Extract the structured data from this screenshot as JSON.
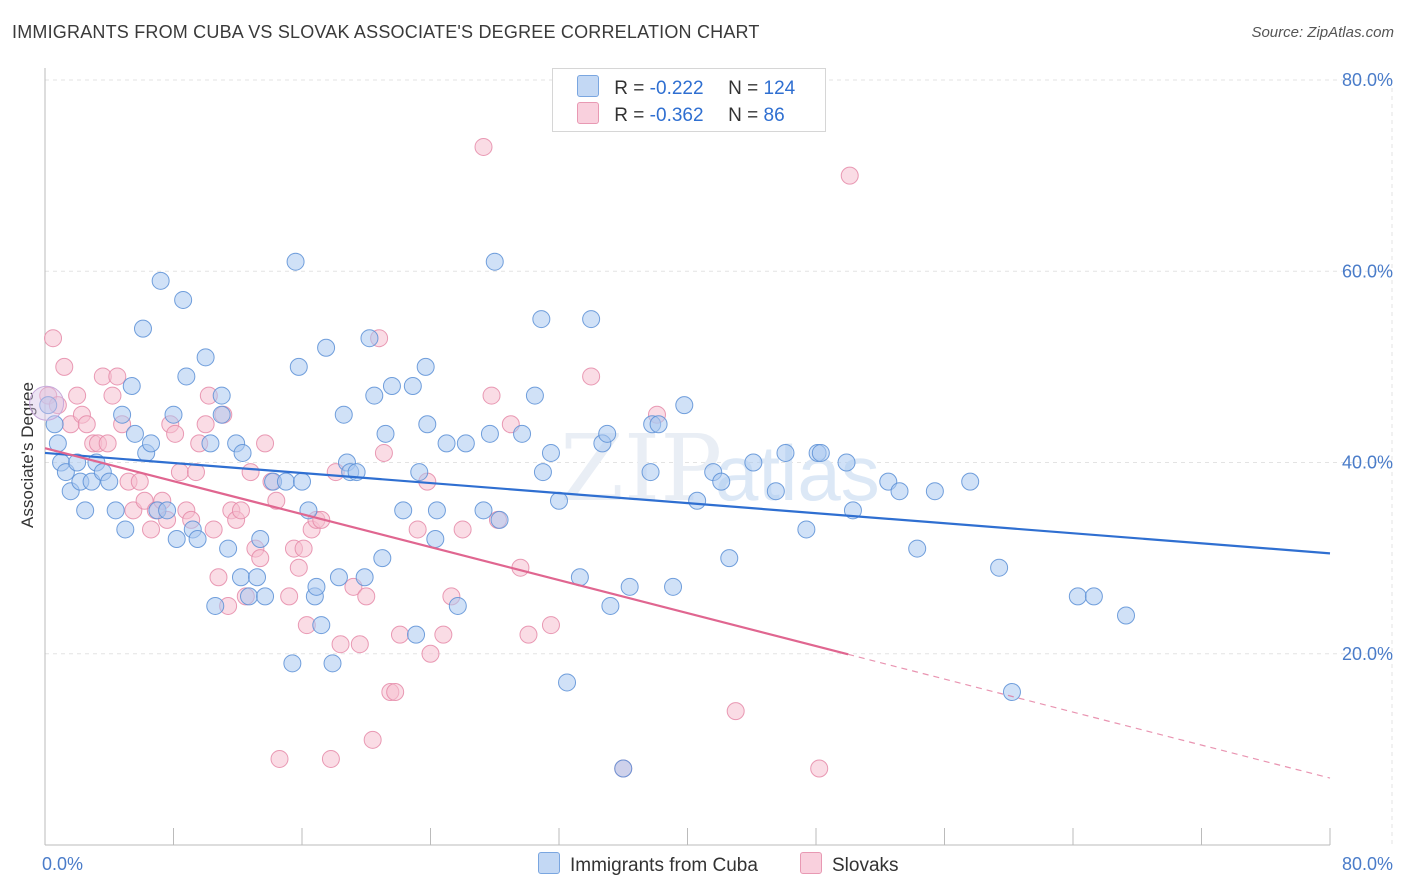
{
  "header": {
    "title": "IMMIGRANTS FROM CUBA VS SLOVAK ASSOCIATE'S DEGREE CORRELATION CHART",
    "source": "Source: ZipAtlas.com"
  },
  "legend": {
    "rows": [
      {
        "r_label": "R =",
        "r_value": "-0.222",
        "n_label": "N =",
        "n_value": "124"
      },
      {
        "r_label": "R =",
        "r_value": "-0.362",
        "n_label": "N =",
        "n_value": "86"
      }
    ]
  },
  "colors": {
    "blue_fill": "#a9c8f0",
    "blue_stroke": "#5a8fd6",
    "blue_line": "#2f6fd1",
    "pink_fill": "#f6bfd0",
    "pink_stroke": "#e58aa8",
    "pink_line": "#e06690",
    "grid": "#e3e3e3",
    "tick_text": "#4a7cc9"
  },
  "chart_data": {
    "type": "scatter",
    "title": "IMMIGRANTS FROM CUBA VS SLOVAK ASSOCIATE'S DEGREE CORRELATION CHART",
    "xlabel": "",
    "ylabel": "Associate's Degree",
    "xlim": [
      0,
      80
    ],
    "ylim": [
      0,
      80
    ],
    "x_tick_labels": [
      "0.0%",
      "80.0%"
    ],
    "y_ticks": [
      20,
      40,
      60,
      80
    ],
    "y_tick_labels": [
      "20.0%",
      "40.0%",
      "60.0%",
      "80.0%"
    ],
    "grid": true,
    "legend_position": "bottom",
    "watermark": "ZIPatlas",
    "series": [
      {
        "name": "Immigrants from Cuba",
        "color": "#a9c8f0",
        "trend": {
          "x0": 0,
          "y0": 41.0,
          "x1": 80,
          "y1": 30.5,
          "dashed_from": null
        },
        "points": [
          [
            0.2,
            46
          ],
          [
            0.6,
            44
          ],
          [
            0.8,
            42
          ],
          [
            1,
            40
          ],
          [
            1.3,
            39
          ],
          [
            1.6,
            37
          ],
          [
            2,
            40
          ],
          [
            2.2,
            38
          ],
          [
            2.5,
            35
          ],
          [
            2.9,
            38
          ],
          [
            3.2,
            40
          ],
          [
            3.6,
            39
          ],
          [
            4,
            38
          ],
          [
            4.4,
            35
          ],
          [
            4.8,
            45
          ],
          [
            5,
            33
          ],
          [
            5.4,
            48
          ],
          [
            5.6,
            43
          ],
          [
            6.1,
            54
          ],
          [
            6.3,
            41
          ],
          [
            6.6,
            42
          ],
          [
            7,
            35
          ],
          [
            7.2,
            59
          ],
          [
            7.6,
            35
          ],
          [
            8,
            45
          ],
          [
            8.2,
            32
          ],
          [
            8.6,
            57
          ],
          [
            8.8,
            49
          ],
          [
            9.2,
            33
          ],
          [
            9.5,
            32
          ],
          [
            10,
            51
          ],
          [
            10.3,
            42
          ],
          [
            10.6,
            25
          ],
          [
            11,
            47
          ],
          [
            11,
            45
          ],
          [
            11.4,
            31
          ],
          [
            11.9,
            42
          ],
          [
            12.2,
            28
          ],
          [
            12.3,
            41
          ],
          [
            12.7,
            26
          ],
          [
            13.2,
            28
          ],
          [
            13.4,
            32
          ],
          [
            13.7,
            26
          ],
          [
            14.2,
            38
          ],
          [
            15,
            38
          ],
          [
            15.4,
            19
          ],
          [
            15.6,
            61
          ],
          [
            15.8,
            50
          ],
          [
            16,
            38
          ],
          [
            16.4,
            35
          ],
          [
            16.8,
            26
          ],
          [
            16.9,
            27
          ],
          [
            17.2,
            23
          ],
          [
            17.5,
            52
          ],
          [
            17.9,
            19
          ],
          [
            18.3,
            28
          ],
          [
            18.6,
            45
          ],
          [
            18.8,
            40
          ],
          [
            19,
            39
          ],
          [
            19.4,
            39
          ],
          [
            19.9,
            28
          ],
          [
            20.2,
            53
          ],
          [
            20.5,
            47
          ],
          [
            21,
            30
          ],
          [
            21.2,
            43
          ],
          [
            21.6,
            48
          ],
          [
            22.3,
            35
          ],
          [
            22.9,
            48
          ],
          [
            23.1,
            22
          ],
          [
            23.3,
            39
          ],
          [
            23.7,
            50
          ],
          [
            23.8,
            44
          ],
          [
            24.3,
            32
          ],
          [
            24.4,
            35
          ],
          [
            25,
            42
          ],
          [
            25.7,
            25
          ],
          [
            26.2,
            42
          ],
          [
            27.3,
            35
          ],
          [
            27.7,
            43
          ],
          [
            28,
            61
          ],
          [
            28.3,
            34
          ],
          [
            29.7,
            43
          ],
          [
            30.5,
            47
          ],
          [
            30.9,
            55
          ],
          [
            31,
            39
          ],
          [
            31.5,
            41
          ],
          [
            32,
            36
          ],
          [
            32.5,
            17
          ],
          [
            33.3,
            28
          ],
          [
            34,
            55
          ],
          [
            34.7,
            42
          ],
          [
            35,
            43
          ],
          [
            35.2,
            25
          ],
          [
            36,
            8
          ],
          [
            36.4,
            27
          ],
          [
            37.7,
            39
          ],
          [
            37.8,
            44
          ],
          [
            38.2,
            44
          ],
          [
            39.1,
            27
          ],
          [
            39.8,
            46
          ],
          [
            40.6,
            36
          ],
          [
            41.6,
            39
          ],
          [
            42.1,
            38
          ],
          [
            42.6,
            30
          ],
          [
            44.1,
            40
          ],
          [
            45.5,
            37
          ],
          [
            46.1,
            41
          ],
          [
            47.4,
            33
          ],
          [
            48.1,
            41
          ],
          [
            48.3,
            41
          ],
          [
            49.9,
            40
          ],
          [
            50.3,
            35
          ],
          [
            52.5,
            38
          ],
          [
            53.2,
            37
          ],
          [
            54.3,
            31
          ],
          [
            55.4,
            37
          ],
          [
            57.6,
            38
          ],
          [
            59.4,
            29
          ],
          [
            60.2,
            16
          ],
          [
            64.3,
            26
          ],
          [
            65.3,
            26
          ],
          [
            67.3,
            24
          ]
        ]
      },
      {
        "name": "Slovaks",
        "color": "#f6bfd0",
        "trend": {
          "x0": 0,
          "y0": 41.5,
          "x1": 80,
          "y1": 7.0,
          "dashed_from": 50
        },
        "points": [
          [
            0.2,
            47
          ],
          [
            0.5,
            53
          ],
          [
            0.8,
            46
          ],
          [
            1.2,
            50
          ],
          [
            1.6,
            44
          ],
          [
            2,
            47
          ],
          [
            2.3,
            45
          ],
          [
            2.6,
            44
          ],
          [
            3,
            42
          ],
          [
            3.3,
            42
          ],
          [
            3.6,
            49
          ],
          [
            3.9,
            42
          ],
          [
            4.2,
            47
          ],
          [
            4.5,
            49
          ],
          [
            4.8,
            44
          ],
          [
            5.2,
            38
          ],
          [
            5.5,
            35
          ],
          [
            5.9,
            38
          ],
          [
            6.2,
            36
          ],
          [
            6.6,
            33
          ],
          [
            6.9,
            35
          ],
          [
            7.3,
            36
          ],
          [
            7.6,
            34
          ],
          [
            7.8,
            44
          ],
          [
            8.1,
            43
          ],
          [
            8.4,
            39
          ],
          [
            8.8,
            35
          ],
          [
            9.1,
            34
          ],
          [
            9.4,
            39
          ],
          [
            9.6,
            42
          ],
          [
            10,
            44
          ],
          [
            10.2,
            47
          ],
          [
            10.5,
            33
          ],
          [
            10.8,
            28
          ],
          [
            11.1,
            45
          ],
          [
            11.4,
            25
          ],
          [
            11.6,
            35
          ],
          [
            11.9,
            34
          ],
          [
            12.2,
            35
          ],
          [
            12.5,
            26
          ],
          [
            12.8,
            39
          ],
          [
            13.1,
            31
          ],
          [
            13.4,
            30
          ],
          [
            13.7,
            42
          ],
          [
            14.1,
            38
          ],
          [
            14.4,
            36
          ],
          [
            14.6,
            9
          ],
          [
            15.2,
            26
          ],
          [
            15.5,
            31
          ],
          [
            15.8,
            29
          ],
          [
            16.1,
            31
          ],
          [
            16.3,
            23
          ],
          [
            16.6,
            33
          ],
          [
            16.9,
            34
          ],
          [
            17.2,
            34
          ],
          [
            17.8,
            9
          ],
          [
            18.1,
            39
          ],
          [
            18.4,
            21
          ],
          [
            19.2,
            27
          ],
          [
            19.6,
            21
          ],
          [
            20,
            26
          ],
          [
            20.4,
            11
          ],
          [
            20.8,
            53
          ],
          [
            21.1,
            41
          ],
          [
            21.5,
            16
          ],
          [
            21.8,
            16
          ],
          [
            22.1,
            22
          ],
          [
            23.2,
            33
          ],
          [
            23.8,
            38
          ],
          [
            24,
            20
          ],
          [
            24.8,
            22
          ],
          [
            25.3,
            26
          ],
          [
            26,
            33
          ],
          [
            27.3,
            73
          ],
          [
            27.8,
            47
          ],
          [
            28.2,
            34
          ],
          [
            29,
            44
          ],
          [
            29.6,
            29
          ],
          [
            30.1,
            22
          ],
          [
            31.5,
            23
          ],
          [
            34,
            49
          ],
          [
            36,
            8
          ],
          [
            38.1,
            45
          ],
          [
            43,
            14
          ],
          [
            48.2,
            8
          ],
          [
            50.1,
            70
          ]
        ]
      }
    ]
  }
}
